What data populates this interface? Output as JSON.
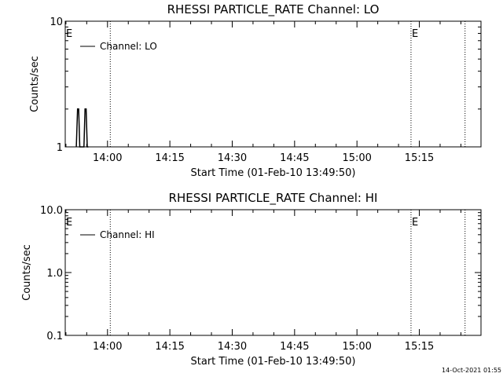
{
  "chart_data": [
    {
      "type": "line",
      "title": "RHESSI PARTICLE_RATE Channel: LO",
      "xlabel": "Start Time (01-Feb-10 13:49:50)",
      "ylabel": "Counts/sec",
      "y_scale": "log",
      "ylim": [
        1,
        10
      ],
      "y_ticks": [
        "1",
        "10"
      ],
      "xlim": [
        "13:49:50",
        "15:29:50"
      ],
      "x_ticks": [
        "14:00",
        "14:15",
        "14:30",
        "14:45",
        "15:00",
        "15:15"
      ],
      "legend": {
        "placement": "top-left",
        "entries": [
          "Channel: LO"
        ]
      },
      "flags": [
        {
          "label": "E",
          "time": "13:49:50"
        },
        {
          "label": "E",
          "time": "15:13:00"
        }
      ],
      "vlines": [
        "14:00:40",
        "15:13:00",
        "15:26:00"
      ],
      "series": [
        {
          "name": "Channel: LO",
          "x": [
            "13:52:30",
            "13:52:48",
            "13:53:04",
            "13:53:20",
            "13:54:20",
            "13:54:36",
            "13:54:52",
            "13:55:08",
            "13:55:24"
          ],
          "y": [
            1,
            2,
            2,
            1,
            1,
            2,
            2,
            1,
            1
          ]
        }
      ]
    },
    {
      "type": "line",
      "title": "RHESSI PARTICLE_RATE Channel: HI",
      "xlabel": "Start Time (01-Feb-10 13:49:50)",
      "ylabel": "Counts/sec",
      "y_scale": "log",
      "ylim": [
        0.1,
        10
      ],
      "y_ticks": [
        "0.1",
        "1.0",
        "10.0"
      ],
      "xlim": [
        "13:49:50",
        "15:29:50"
      ],
      "x_ticks": [
        "14:00",
        "14:15",
        "14:30",
        "14:45",
        "15:00",
        "15:15"
      ],
      "legend": {
        "placement": "top-left",
        "entries": [
          "Channel: HI"
        ]
      },
      "flags": [
        {
          "label": "E",
          "time": "13:49:50"
        },
        {
          "label": "E",
          "time": "15:13:00"
        }
      ],
      "vlines": [
        "14:00:40",
        "15:13:00",
        "15:26:00"
      ],
      "series": [
        {
          "name": "Channel: HI",
          "x": [],
          "y": []
        }
      ]
    }
  ],
  "footer": {
    "timestamp": "14-Oct-2021 01:55"
  },
  "colors": {
    "background": "#ffffff",
    "foreground": "#000000"
  }
}
